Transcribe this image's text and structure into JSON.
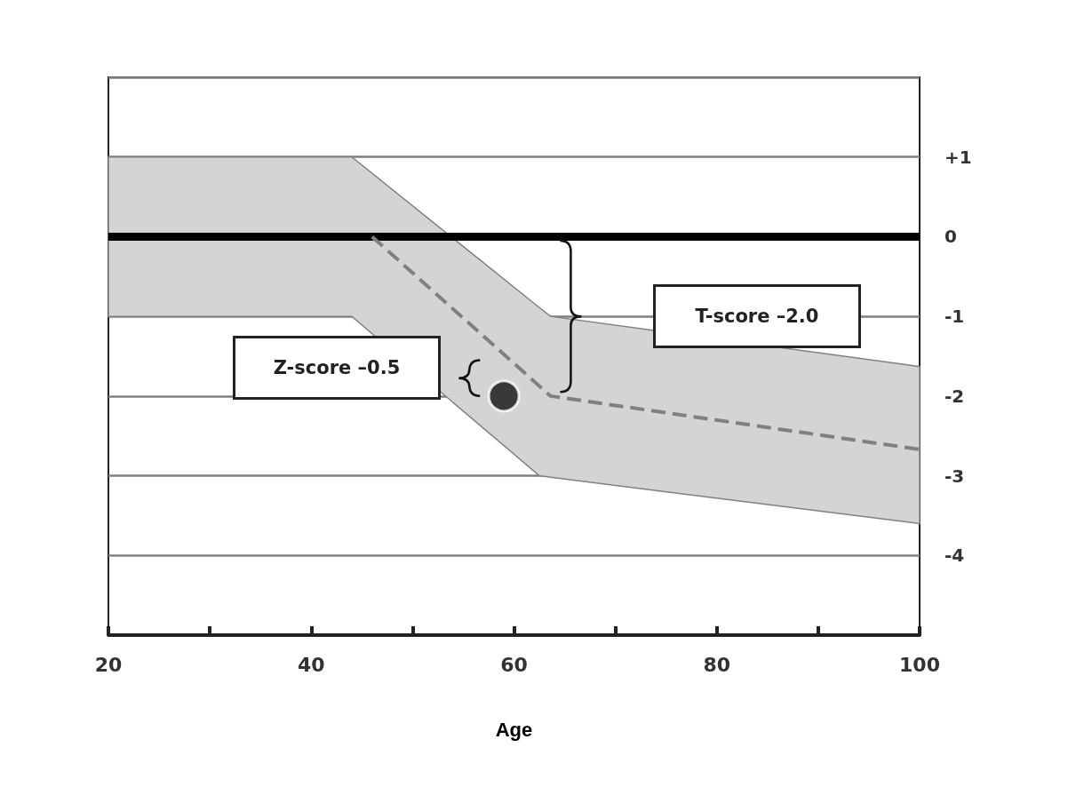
{
  "chart_data": {
    "type": "line",
    "xlabel": "Age",
    "xlim": [
      20,
      100
    ],
    "xticks": [
      20,
      {
        "value": 30,
        "label": null
      },
      40,
      {
        "value": 50,
        "label": null
      },
      60,
      {
        "value": 70,
        "label": null
      },
      80,
      {
        "value": 90,
        "label": null
      },
      100
    ],
    "ylim": [
      -5,
      2
    ],
    "yticks": [
      -4,
      -3,
      -2,
      -1,
      0,
      {
        "value": 1,
        "label": "+1"
      }
    ],
    "grid": "y",
    "series": [
      {
        "type": "area",
        "color": "#d4d4d4",
        "x": [
          20,
          44,
          62.5,
          63.6,
          100
        ],
        "values": [
          null,
          null,
          null,
          null,
          null
        ],
        "lower": [
          -1,
          -1,
          -3,
          -3.02,
          -3.6
        ],
        "upper": [
          1,
          1,
          -0.89,
          -1,
          -1.63
        ]
      },
      {
        "color": "#808080",
        "line_style": "dashed",
        "marker": "none",
        "x": [
          46,
          63.6,
          100
        ],
        "values": [
          0,
          -2,
          -2.67
        ]
      },
      {
        "type": "scatter",
        "color": "#111111",
        "marker": "circle",
        "x": [
          59
        ],
        "values": [
          -2
        ]
      }
    ],
    "ref_lines": [
      {
        "axis": "y",
        "value": 0,
        "color": "#000000"
      }
    ],
    "annotations": [
      "T-score –2.0",
      "Z-score –0.5"
    ]
  }
}
